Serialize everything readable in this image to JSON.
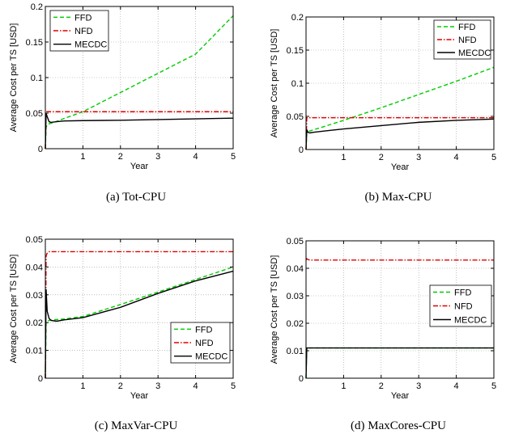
{
  "chart_data": [
    {
      "type": "line",
      "caption": "(a) Tot-CPU",
      "xlabel": "Year",
      "ylabel": "Average Cost per TS [USD]",
      "xlim": [
        0,
        5
      ],
      "ylim": [
        0,
        0.2
      ],
      "xticks": [
        1,
        2,
        3,
        4,
        5
      ],
      "xtick_labels": [
        "1",
        "2",
        "3",
        "4",
        "5"
      ],
      "yticks": [
        0,
        0.05,
        0.1,
        0.15,
        0.2
      ],
      "ytick_labels": [
        "0",
        "0.05",
        "0.1",
        "0.15",
        "0.2"
      ],
      "grid": true,
      "legend_position": "top-left",
      "series": [
        {
          "name": "FFD",
          "color": "#00cc00",
          "dash": "dashed",
          "x": [
            0,
            0.02,
            0.05,
            0.1,
            0.2,
            0.5,
            1,
            2,
            3,
            4,
            5
          ],
          "y": [
            0,
            0.03,
            0.034,
            0.035,
            0.0365,
            0.0425,
            0.052,
            0.079,
            0.106,
            0.133,
            0.187
          ]
        },
        {
          "name": "NFD",
          "color": "#dd0000",
          "dash": "dashdot",
          "x": [
            0,
            0.02,
            0.05,
            0.1,
            0.5,
            1,
            2,
            3,
            4,
            5
          ],
          "y": [
            0,
            0.052,
            0.052,
            0.052,
            0.052,
            0.052,
            0.052,
            0.052,
            0.052,
            0.052
          ]
        },
        {
          "name": "MECDC",
          "color": "#000000",
          "dash": "solid",
          "x": [
            0,
            0.02,
            0.05,
            0.1,
            0.15,
            0.3,
            0.5,
            1,
            2,
            3,
            4,
            5
          ],
          "y": [
            0,
            0.05,
            0.045,
            0.038,
            0.037,
            0.038,
            0.039,
            0.0395,
            0.04,
            0.041,
            0.042,
            0.043
          ]
        }
      ]
    },
    {
      "type": "line",
      "caption": "(b) Max-CPU",
      "xlabel": "Year",
      "ylabel": "Average Cost per TS [USD]",
      "xlim": [
        0,
        5
      ],
      "ylim": [
        0,
        0.2
      ],
      "xticks": [
        1,
        2,
        3,
        4,
        5
      ],
      "xtick_labels": [
        "1",
        "2",
        "3",
        "4",
        "5"
      ],
      "yticks": [
        0,
        0.05,
        0.1,
        0.15,
        0.2
      ],
      "ytick_labels": [
        "0",
        "0.05",
        "0.1",
        "0.15",
        "0.2"
      ],
      "grid": true,
      "legend_position": "top-right",
      "series": [
        {
          "name": "FFD",
          "color": "#00cc00",
          "dash": "dashed",
          "x": [
            0,
            0.02,
            0.05,
            0.1,
            0.5,
            1,
            2,
            3,
            4,
            5
          ],
          "y": [
            0,
            0.025,
            0.027,
            0.028,
            0.035,
            0.044,
            0.063,
            0.083,
            0.103,
            0.124
          ]
        },
        {
          "name": "NFD",
          "color": "#dd0000",
          "dash": "dashdot",
          "x": [
            0,
            0.02,
            0.05,
            0.1,
            0.5,
            1,
            2,
            3,
            4,
            5
          ],
          "y": [
            0,
            0.048,
            0.048,
            0.048,
            0.048,
            0.048,
            0.048,
            0.048,
            0.048,
            0.048
          ]
        },
        {
          "name": "MECDC",
          "color": "#000000",
          "dash": "solid",
          "x": [
            0,
            0.02,
            0.05,
            0.1,
            0.2,
            0.5,
            1,
            2,
            3,
            4,
            5
          ],
          "y": [
            0,
            0.03,
            0.026,
            0.025,
            0.026,
            0.028,
            0.031,
            0.036,
            0.041,
            0.044,
            0.046
          ]
        }
      ]
    },
    {
      "type": "line",
      "caption": "(c) MaxVar-CPU",
      "xlabel": "Year",
      "ylabel": "Average Cost per TS [USD]",
      "xlim": [
        0,
        5
      ],
      "ylim": [
        0,
        0.05
      ],
      "xticks": [
        1,
        2,
        3,
        4,
        5
      ],
      "xtick_labels": [
        "1",
        "2",
        "3",
        "4",
        "5"
      ],
      "yticks": [
        0,
        0.01,
        0.02,
        0.03,
        0.04,
        0.05
      ],
      "ytick_labels": [
        "0",
        "0.01",
        "0.02",
        "0.03",
        "0.04",
        "0.05"
      ],
      "grid": true,
      "legend_position": "bottom-right",
      "series": [
        {
          "name": "FFD",
          "color": "#00cc00",
          "dash": "dashed",
          "x": [
            0,
            0.02,
            0.05,
            0.1,
            0.2,
            0.5,
            1,
            2,
            3,
            4,
            5
          ],
          "y": [
            0,
            0.02,
            0.0205,
            0.0208,
            0.021,
            0.0213,
            0.0222,
            0.0265,
            0.031,
            0.0355,
            0.04
          ]
        },
        {
          "name": "NFD",
          "color": "#dd0000",
          "dash": "dashdot",
          "x": [
            0,
            0.02,
            0.05,
            0.1,
            0.5,
            1,
            2,
            3,
            4,
            5
          ],
          "y": [
            0,
            0.044,
            0.045,
            0.0455,
            0.0455,
            0.0455,
            0.0455,
            0.0455,
            0.0455,
            0.0455
          ]
        },
        {
          "name": "MECDC",
          "color": "#000000",
          "dash": "solid",
          "x": [
            0,
            0.02,
            0.05,
            0.1,
            0.15,
            0.3,
            0.5,
            1,
            2,
            3,
            4,
            5
          ],
          "y": [
            0,
            0.032,
            0.024,
            0.0215,
            0.0208,
            0.0205,
            0.021,
            0.0218,
            0.0255,
            0.0305,
            0.035,
            0.0385
          ]
        }
      ]
    },
    {
      "type": "line",
      "caption": "(d) MaxCores-CPU",
      "xlabel": "Year",
      "ylabel": "Average Cost per TS [USD]",
      "xlim": [
        0,
        5
      ],
      "ylim": [
        0,
        0.05
      ],
      "xticks": [
        1,
        2,
        3,
        4,
        5
      ],
      "xtick_labels": [
        "1",
        "2",
        "3",
        "4",
        "5"
      ],
      "yticks": [
        0,
        0.01,
        0.02,
        0.03,
        0.04,
        0.05
      ],
      "ytick_labels": [
        "0",
        "0.01",
        "0.02",
        "0.03",
        "0.04",
        "0.05"
      ],
      "grid": true,
      "legend_position": "center-right",
      "series": [
        {
          "name": "FFD",
          "color": "#00cc00",
          "dash": "dashed",
          "x": [
            0,
            0.02,
            0.05,
            0.1,
            1,
            2,
            3,
            4,
            5
          ],
          "y": [
            0,
            0.011,
            0.011,
            0.011,
            0.011,
            0.011,
            0.011,
            0.011,
            0.011
          ]
        },
        {
          "name": "NFD",
          "color": "#dd0000",
          "dash": "dashdot",
          "x": [
            0,
            0.02,
            0.05,
            0.1,
            1,
            2,
            3,
            4,
            5
          ],
          "y": [
            0.043,
            0.0435,
            0.0432,
            0.043,
            0.043,
            0.043,
            0.043,
            0.043,
            0.043
          ]
        },
        {
          "name": "MECDC",
          "color": "#000000",
          "dash": "solid",
          "x": [
            0,
            0.02,
            0.05,
            0.1,
            1,
            2,
            3,
            4,
            5
          ],
          "y": [
            0,
            0.011,
            0.011,
            0.011,
            0.011,
            0.011,
            0.011,
            0.011,
            0.011
          ]
        }
      ]
    }
  ]
}
